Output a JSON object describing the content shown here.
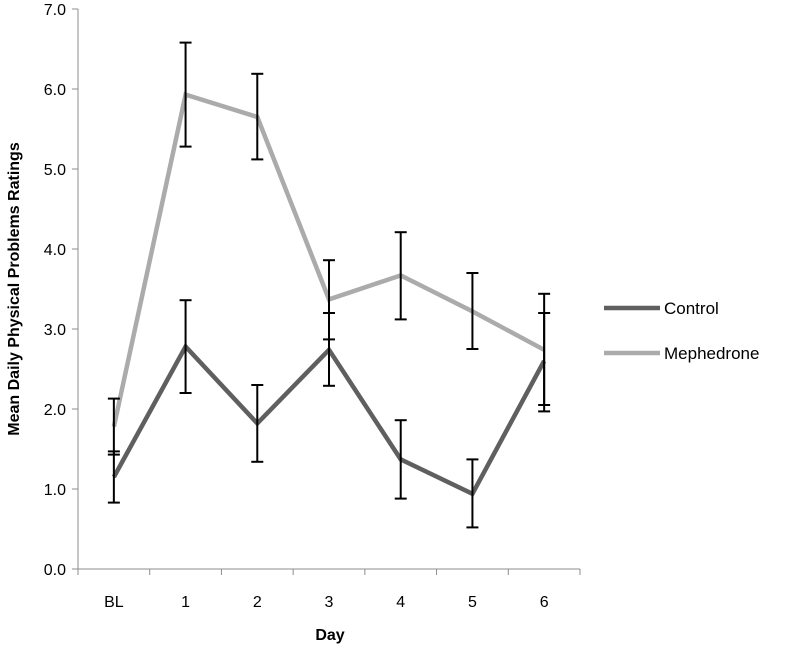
{
  "chart_data": {
    "type": "line",
    "title": "",
    "xlabel": "Day",
    "ylabel": "Mean Daily Physical Problems Ratings",
    "categories": [
      "BL",
      "1",
      "2",
      "3",
      "4",
      "5",
      "6"
    ],
    "ylim": [
      0,
      7
    ],
    "yticks": [
      "0.0",
      "1.0",
      "2.0",
      "3.0",
      "4.0",
      "5.0",
      "6.0",
      "7.0"
    ],
    "grid": false,
    "legend": "right",
    "series": [
      {
        "name": "Control",
        "color": "#5f5f5f",
        "values": [
          1.15,
          2.78,
          1.82,
          2.74,
          1.37,
          0.94,
          2.6
        ],
        "err_low": [
          0.83,
          2.2,
          1.34,
          2.29,
          0.88,
          0.52,
          1.97
        ],
        "err_high": [
          1.47,
          3.36,
          2.3,
          3.2,
          1.86,
          1.37,
          3.2
        ]
      },
      {
        "name": "Mephedrone",
        "color": "#ababab",
        "values": [
          1.78,
          5.93,
          5.65,
          3.37,
          3.67,
          3.22,
          2.74
        ],
        "err_low": [
          1.43,
          5.28,
          5.12,
          2.87,
          3.12,
          2.75,
          2.05
        ],
        "err_high": [
          2.13,
          6.58,
          6.19,
          3.86,
          4.21,
          3.7,
          3.44
        ]
      }
    ]
  }
}
